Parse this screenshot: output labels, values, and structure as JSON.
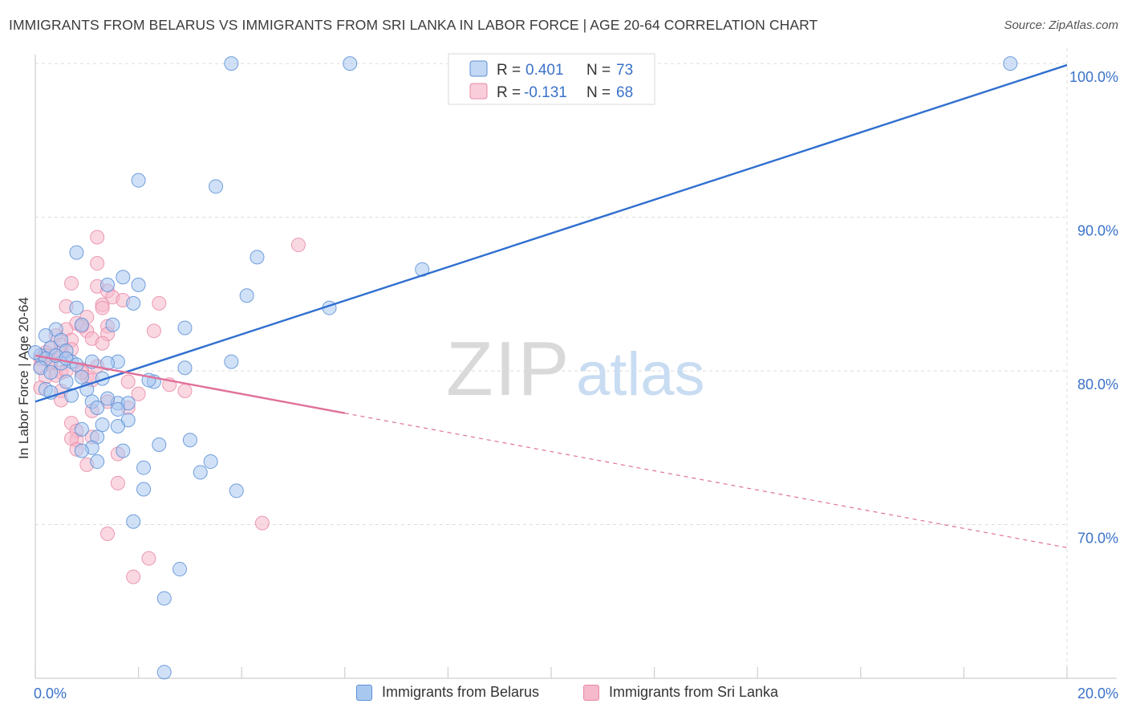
{
  "header": {
    "title": "IMMIGRANTS FROM BELARUS VS IMMIGRANTS FROM SRI LANKA IN LABOR FORCE | AGE 20-64 CORRELATION CHART",
    "source": "Source: ZipAtlas.com"
  },
  "watermark": {
    "zip": "ZIP",
    "atlas": "atlas"
  },
  "legend_top": {
    "rows": [
      {
        "r_label": "R =",
        "r_value": "0.401",
        "n_label": "N =",
        "n_value": "73"
      },
      {
        "r_label": "R =",
        "r_value": "-0.131",
        "n_label": "N =",
        "n_value": "68"
      }
    ]
  },
  "colors": {
    "belarus_fill": "#a9c8f0",
    "belarus_stroke": "#5b8fd6",
    "belarus_line": "#2f6fd0",
    "srilanka_fill": "#f6b8cb",
    "srilanka_stroke": "#e88aa6",
    "srilanka_line": "#e0709a",
    "value_text": "#3a72c9",
    "grid": "#dcdcdc"
  },
  "chart_data": {
    "type": "scatter",
    "title": "IMMIGRANTS FROM BELARUS VS IMMIGRANTS FROM SRI LANKA IN LABOR FORCE | AGE 20-64 CORRELATION CHART",
    "xlabel": "",
    "ylabel": "In Labor Force | Age 20-64",
    "xlim": [
      0,
      20
    ],
    "ylim": [
      60,
      101
    ],
    "x_tick_labels": [
      "0.0%",
      "20.0%"
    ],
    "y_tick_labels": [
      "70.0%",
      "80.0%",
      "90.0%",
      "100.0%"
    ],
    "y_ticks": [
      70,
      80,
      90,
      100
    ],
    "grid": true,
    "legend_placement": "top-center",
    "series": [
      {
        "name": "Immigrants from Belarus",
        "r": 0.401,
        "n": 73,
        "trend": {
          "x0": 0,
          "y0": 78.0,
          "x1": 20,
          "y1": 99.9,
          "dashed_from": null
        },
        "points": [
          [
            3.8,
            100.0
          ],
          [
            6.1,
            100.0
          ],
          [
            18.9,
            100.0
          ],
          [
            2.0,
            92.4
          ],
          [
            3.5,
            92.0
          ],
          [
            0.8,
            87.7
          ],
          [
            4.3,
            87.4
          ],
          [
            7.5,
            86.6
          ],
          [
            1.7,
            86.1
          ],
          [
            1.4,
            85.6
          ],
          [
            2.0,
            85.6
          ],
          [
            4.1,
            84.9
          ],
          [
            0.8,
            84.1
          ],
          [
            1.9,
            84.4
          ],
          [
            5.7,
            84.1
          ],
          [
            0.4,
            82.7
          ],
          [
            0.9,
            83.0
          ],
          [
            1.5,
            83.0
          ],
          [
            2.9,
            82.8
          ],
          [
            0.2,
            82.3
          ],
          [
            0.5,
            82.0
          ],
          [
            0.3,
            81.5
          ],
          [
            0.6,
            81.3
          ],
          [
            0.1,
            81.0
          ],
          [
            0.2,
            80.8
          ],
          [
            0.7,
            80.6
          ],
          [
            0.5,
            80.5
          ],
          [
            1.1,
            80.6
          ],
          [
            1.6,
            80.6
          ],
          [
            1.4,
            80.5
          ],
          [
            2.9,
            80.2
          ],
          [
            3.8,
            80.6
          ],
          [
            0.1,
            80.2
          ],
          [
            0.3,
            79.9
          ],
          [
            0.6,
            79.3
          ],
          [
            0.9,
            79.6
          ],
          [
            1.3,
            79.5
          ],
          [
            2.3,
            79.3
          ],
          [
            0.2,
            78.8
          ],
          [
            0.7,
            78.4
          ],
          [
            1.1,
            78.0
          ],
          [
            1.6,
            77.9
          ],
          [
            1.8,
            77.9
          ],
          [
            1.2,
            77.6
          ],
          [
            1.6,
            77.5
          ],
          [
            1.8,
            76.8
          ],
          [
            1.3,
            76.5
          ],
          [
            1.6,
            76.4
          ],
          [
            0.9,
            76.2
          ],
          [
            1.2,
            75.7
          ],
          [
            3.0,
            75.5
          ],
          [
            2.4,
            75.2
          ],
          [
            1.1,
            75.0
          ],
          [
            1.7,
            74.8
          ],
          [
            0.9,
            74.8
          ],
          [
            1.2,
            74.1
          ],
          [
            3.4,
            74.1
          ],
          [
            2.1,
            73.7
          ],
          [
            3.2,
            73.4
          ],
          [
            2.1,
            72.3
          ],
          [
            3.9,
            72.2
          ],
          [
            1.9,
            70.2
          ],
          [
            2.8,
            67.1
          ],
          [
            2.5,
            65.2
          ],
          [
            2.5,
            60.4
          ],
          [
            0.0,
            81.2
          ],
          [
            0.4,
            81.0
          ],
          [
            0.6,
            80.8
          ],
          [
            0.8,
            80.4
          ],
          [
            1.0,
            78.8
          ],
          [
            2.2,
            79.4
          ],
          [
            0.3,
            78.6
          ],
          [
            1.4,
            78.2
          ]
        ]
      },
      {
        "name": "Immigrants from Sri Lanka",
        "r": -0.131,
        "n": 68,
        "trend": {
          "x0": 0,
          "y0": 81.0,
          "x1": 20,
          "y1": 68.5,
          "dashed_from": 6.0
        },
        "points": [
          [
            1.2,
            88.7
          ],
          [
            5.1,
            88.2
          ],
          [
            1.2,
            87.0
          ],
          [
            0.7,
            85.7
          ],
          [
            1.2,
            85.5
          ],
          [
            1.4,
            85.2
          ],
          [
            1.5,
            84.8
          ],
          [
            0.6,
            84.2
          ],
          [
            1.3,
            84.3
          ],
          [
            1.3,
            84.1
          ],
          [
            2.4,
            84.4
          ],
          [
            1.0,
            83.5
          ],
          [
            0.8,
            83.1
          ],
          [
            1.4,
            82.9
          ],
          [
            0.6,
            82.7
          ],
          [
            1.0,
            82.6
          ],
          [
            2.3,
            82.6
          ],
          [
            0.4,
            82.3
          ],
          [
            1.4,
            82.4
          ],
          [
            0.7,
            82.0
          ],
          [
            1.1,
            82.1
          ],
          [
            1.3,
            81.8
          ],
          [
            0.3,
            81.5
          ],
          [
            0.5,
            81.3
          ],
          [
            0.7,
            81.4
          ],
          [
            0.2,
            81.2
          ],
          [
            0.4,
            81.0
          ],
          [
            0.6,
            80.8
          ],
          [
            0.1,
            80.8
          ],
          [
            0.3,
            80.5
          ],
          [
            0.1,
            80.3
          ],
          [
            0.9,
            80.1
          ],
          [
            0.5,
            79.9
          ],
          [
            0.2,
            79.6
          ],
          [
            1.0,
            79.6
          ],
          [
            1.8,
            79.3
          ],
          [
            2.6,
            79.1
          ],
          [
            1.1,
            79.4
          ],
          [
            0.5,
            78.7
          ],
          [
            0.1,
            78.9
          ],
          [
            2.0,
            78.5
          ],
          [
            2.9,
            78.7
          ],
          [
            0.5,
            78.1
          ],
          [
            1.4,
            78.0
          ],
          [
            1.8,
            77.6
          ],
          [
            1.1,
            77.4
          ],
          [
            0.7,
            76.6
          ],
          [
            0.8,
            76.1
          ],
          [
            1.1,
            75.7
          ],
          [
            0.8,
            75.5
          ],
          [
            0.7,
            75.6
          ],
          [
            0.8,
            74.9
          ],
          [
            1.6,
            74.6
          ],
          [
            1.0,
            73.9
          ],
          [
            1.6,
            72.7
          ],
          [
            4.4,
            70.1
          ],
          [
            1.4,
            69.4
          ],
          [
            2.2,
            67.8
          ],
          [
            1.9,
            66.6
          ],
          [
            0.9,
            79.9
          ],
          [
            0.3,
            80.6
          ],
          [
            0.2,
            81.0
          ],
          [
            0.4,
            79.7
          ],
          [
            1.2,
            80.3
          ],
          [
            0.6,
            80.0
          ],
          [
            0.9,
            82.9
          ],
          [
            1.7,
            84.6
          ],
          [
            0.5,
            81.7
          ]
        ]
      }
    ]
  }
}
